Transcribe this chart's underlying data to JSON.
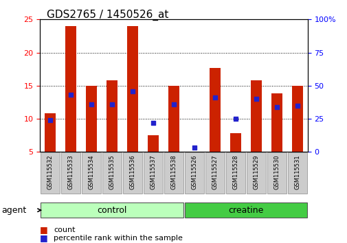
{
  "title": "GDS2765 / 1450526_at",
  "samples": [
    "GSM115532",
    "GSM115533",
    "GSM115534",
    "GSM115535",
    "GSM115536",
    "GSM115537",
    "GSM115538",
    "GSM115526",
    "GSM115527",
    "GSM115528",
    "GSM115529",
    "GSM115530",
    "GSM115531"
  ],
  "count_values": [
    10.8,
    24.0,
    15.0,
    15.8,
    24.0,
    7.5,
    15.0,
    5.0,
    17.7,
    7.8,
    15.8,
    13.8,
    15.0
  ],
  "percentile_values": [
    24.0,
    43.0,
    36.0,
    36.0,
    46.0,
    22.0,
    36.0,
    3.0,
    41.0,
    25.0,
    40.0,
    34.0,
    35.0
  ],
  "ylim_left": [
    5,
    25
  ],
  "ylim_right": [
    0,
    100
  ],
  "yticks_left": [
    5,
    10,
    15,
    20,
    25
  ],
  "yticks_right": [
    0,
    25,
    50,
    75,
    100
  ],
  "bar_color": "#cc2200",
  "dot_color": "#2222cc",
  "bar_bottom": 5.0,
  "n_control": 7,
  "n_creatine": 6,
  "control_color": "#bbffbb",
  "creatine_color": "#44cc44",
  "group_label_control": "control",
  "group_label_creatine": "creatine",
  "agent_label": "agent",
  "legend_count": "count",
  "legend_pct": "percentile rank within the sample",
  "title_fontsize": 11,
  "tick_fontsize": 8,
  "label_fontsize": 9,
  "sample_fontsize": 6,
  "sample_box_color": "#cccccc"
}
